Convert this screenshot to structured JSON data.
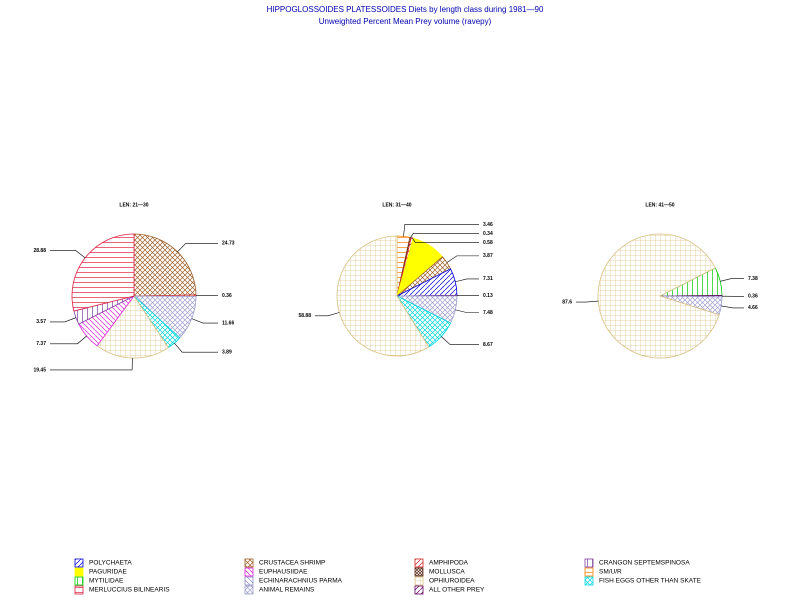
{
  "title": "HIPPOGLOSSOIDES PLATESSOIDES Diets by length class during 1981—90",
  "subtitle": "Unweighted Percent Mean Prey volume (ravepy)",
  "legend": [
    {
      "name": "POLYCHAETA",
      "color": "#0000e0"
    },
    {
      "name": "CRUSTACEA SHRIMP",
      "color": "#a0602a"
    },
    {
      "name": "AMPHIPODA",
      "color": "#d02020"
    },
    {
      "name": "CRANGON SEPTEMSPINOSA",
      "color": "#8040a0"
    },
    {
      "name": "PAGURIDAE",
      "color": "#ffff00"
    },
    {
      "name": "EUPHAUSIIDAE",
      "color": "#e020e0"
    },
    {
      "name": "MOLLUSCA",
      "color": "#603020"
    },
    {
      "name": "SM/U/R",
      "color": "#ff8000"
    },
    {
      "name": "MYTILIDAE",
      "color": "#00cc00"
    },
    {
      "name": "ECHINARACHNIUS PARMA",
      "color": "#9090c0"
    },
    {
      "name": "OPHIUROIDEA",
      "color": "#d8c080"
    },
    {
      "name": "FISH EGGS OTHER THAN SKATE",
      "color": "#00d8e0"
    },
    {
      "name": "MERLUCCIUS BILINEARIS",
      "color": "#e02040"
    },
    {
      "name": "ANIMAL REMAINS",
      "color": "#a0a0d0"
    },
    {
      "name": "ALL OTHER PREY",
      "color": "#600060"
    }
  ],
  "chart_data": [
    {
      "type": "pie",
      "title": "LEN: 21—30",
      "categories": [
        "CRUSTACEA SHRIMP",
        "AMPHIPODA",
        "ANIMAL REMAINS",
        "FISH EGGS OTHER THAN SKATE",
        "OPHIUROIDEA",
        "EUPHAUSIIDAE",
        "CRANGON SEPTEMSPINOSA",
        "MERLUCCIUS BILINEARIS"
      ],
      "values": [
        24.73,
        0.36,
        11.66,
        3.89,
        19.45,
        7.37,
        3.57,
        28.88
      ]
    },
    {
      "type": "pie",
      "title": "LEN: 31—40",
      "categories": [
        "SM/U/R",
        "MOLLUSCA",
        "AMPHIPODA",
        "PAGURIDAE",
        "CRUSTACEA SHRIMP",
        "POLYCHAETA",
        "ALL OTHER PREY",
        "ANIMAL REMAINS",
        "FISH EGGS OTHER THAN SKATE",
        "OPHIUROIDEA"
      ],
      "values": [
        3.46,
        0.34,
        0.58,
        9.28,
        3.87,
        7.31,
        0.13,
        7.48,
        8.67,
        58.88
      ],
      "labeled": [
        true,
        true,
        true,
        false,
        true,
        true,
        true,
        true,
        true,
        true
      ]
    },
    {
      "type": "pie",
      "title": "LEN: 41—50",
      "categories": [
        "MYTILIDAE",
        "ALL OTHER PREY",
        "ANIMAL REMAINS",
        "OPHIUROIDEA"
      ],
      "values": [
        7.38,
        0.36,
        4.66,
        87.6
      ]
    }
  ]
}
